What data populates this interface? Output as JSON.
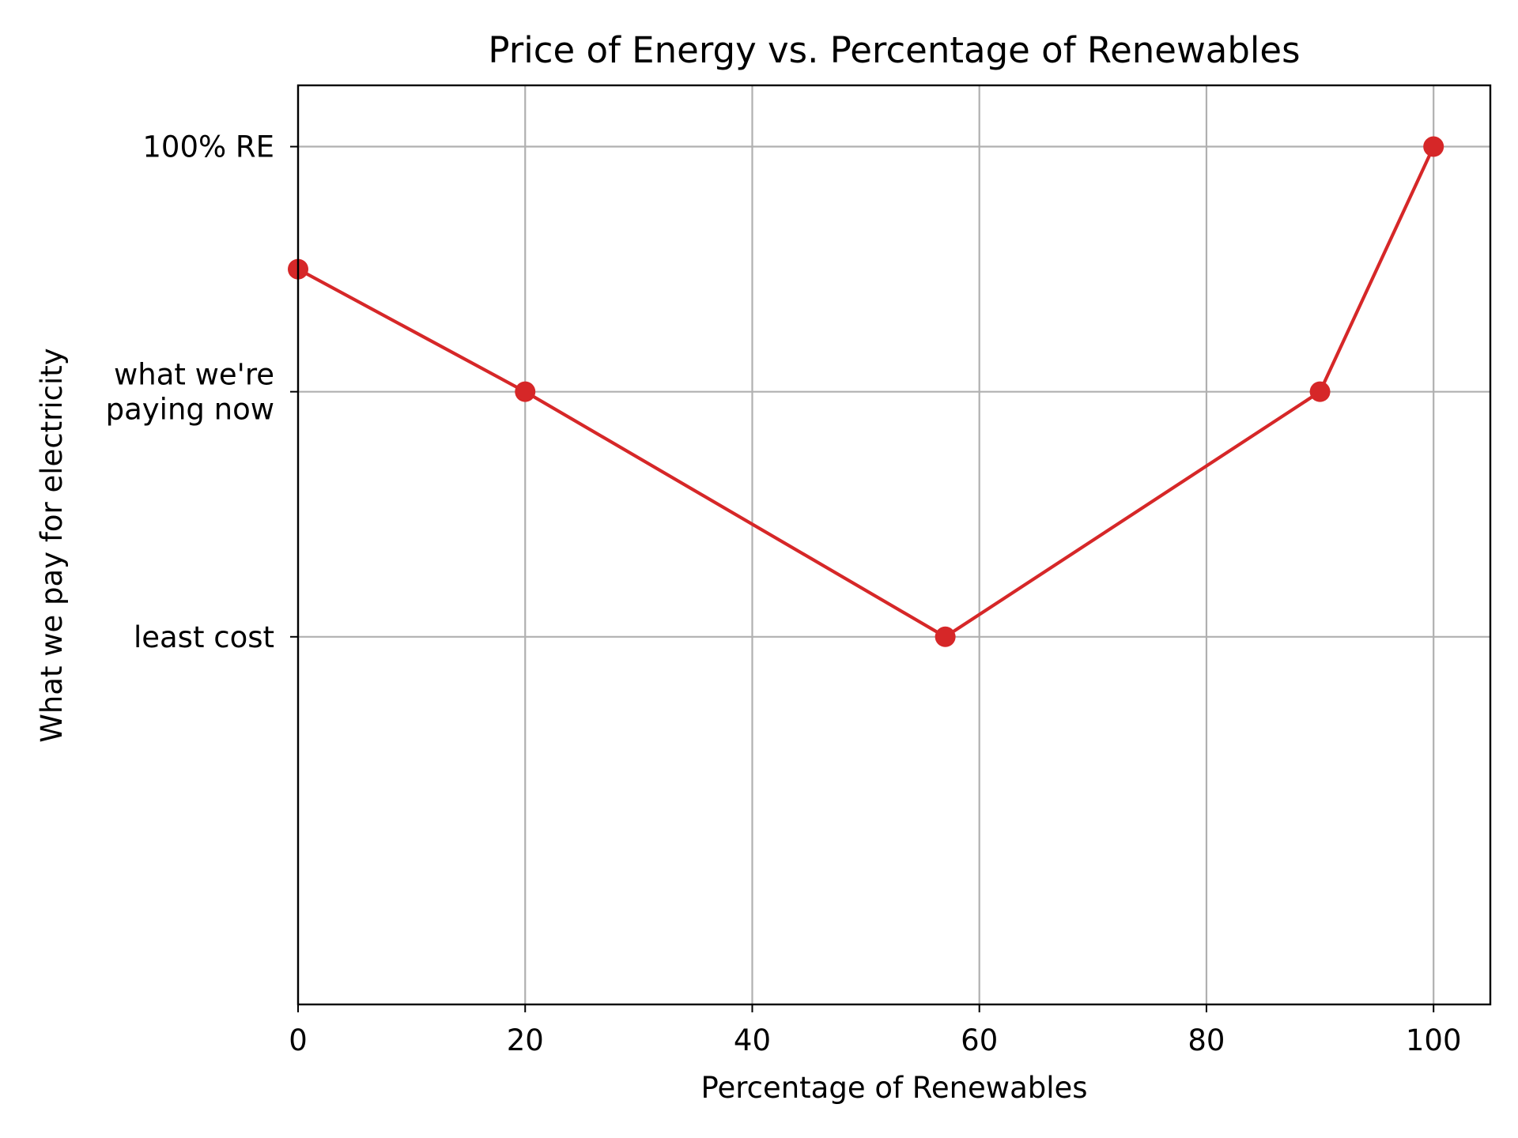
{
  "chart_data": {
    "type": "line",
    "title": "Price of Energy vs. Percentage of Renewables",
    "xlabel": "Percentage of Renewables",
    "ylabel": "What we pay for electricity",
    "xlim": [
      0,
      105
    ],
    "ylim": [
      0,
      3.75
    ],
    "grid": true,
    "x_ticks": [
      {
        "value": 0,
        "label": "0"
      },
      {
        "value": 20,
        "label": "20"
      },
      {
        "value": 40,
        "label": "40"
      },
      {
        "value": 60,
        "label": "60"
      },
      {
        "value": 80,
        "label": "80"
      },
      {
        "value": 100,
        "label": "100"
      }
    ],
    "y_ticks": [
      {
        "value": 1.5,
        "lines": [
          "least cost"
        ]
      },
      {
        "value": 2.5,
        "lines": [
          "what we're",
          "paying now"
        ]
      },
      {
        "value": 3.5,
        "lines": [
          "100% RE"
        ]
      }
    ],
    "series": [
      {
        "color": "#d62728",
        "x": [
          0,
          20,
          57,
          90,
          100
        ],
        "y": [
          3.0,
          2.5,
          1.5,
          2.5,
          3.5
        ]
      }
    ]
  }
}
